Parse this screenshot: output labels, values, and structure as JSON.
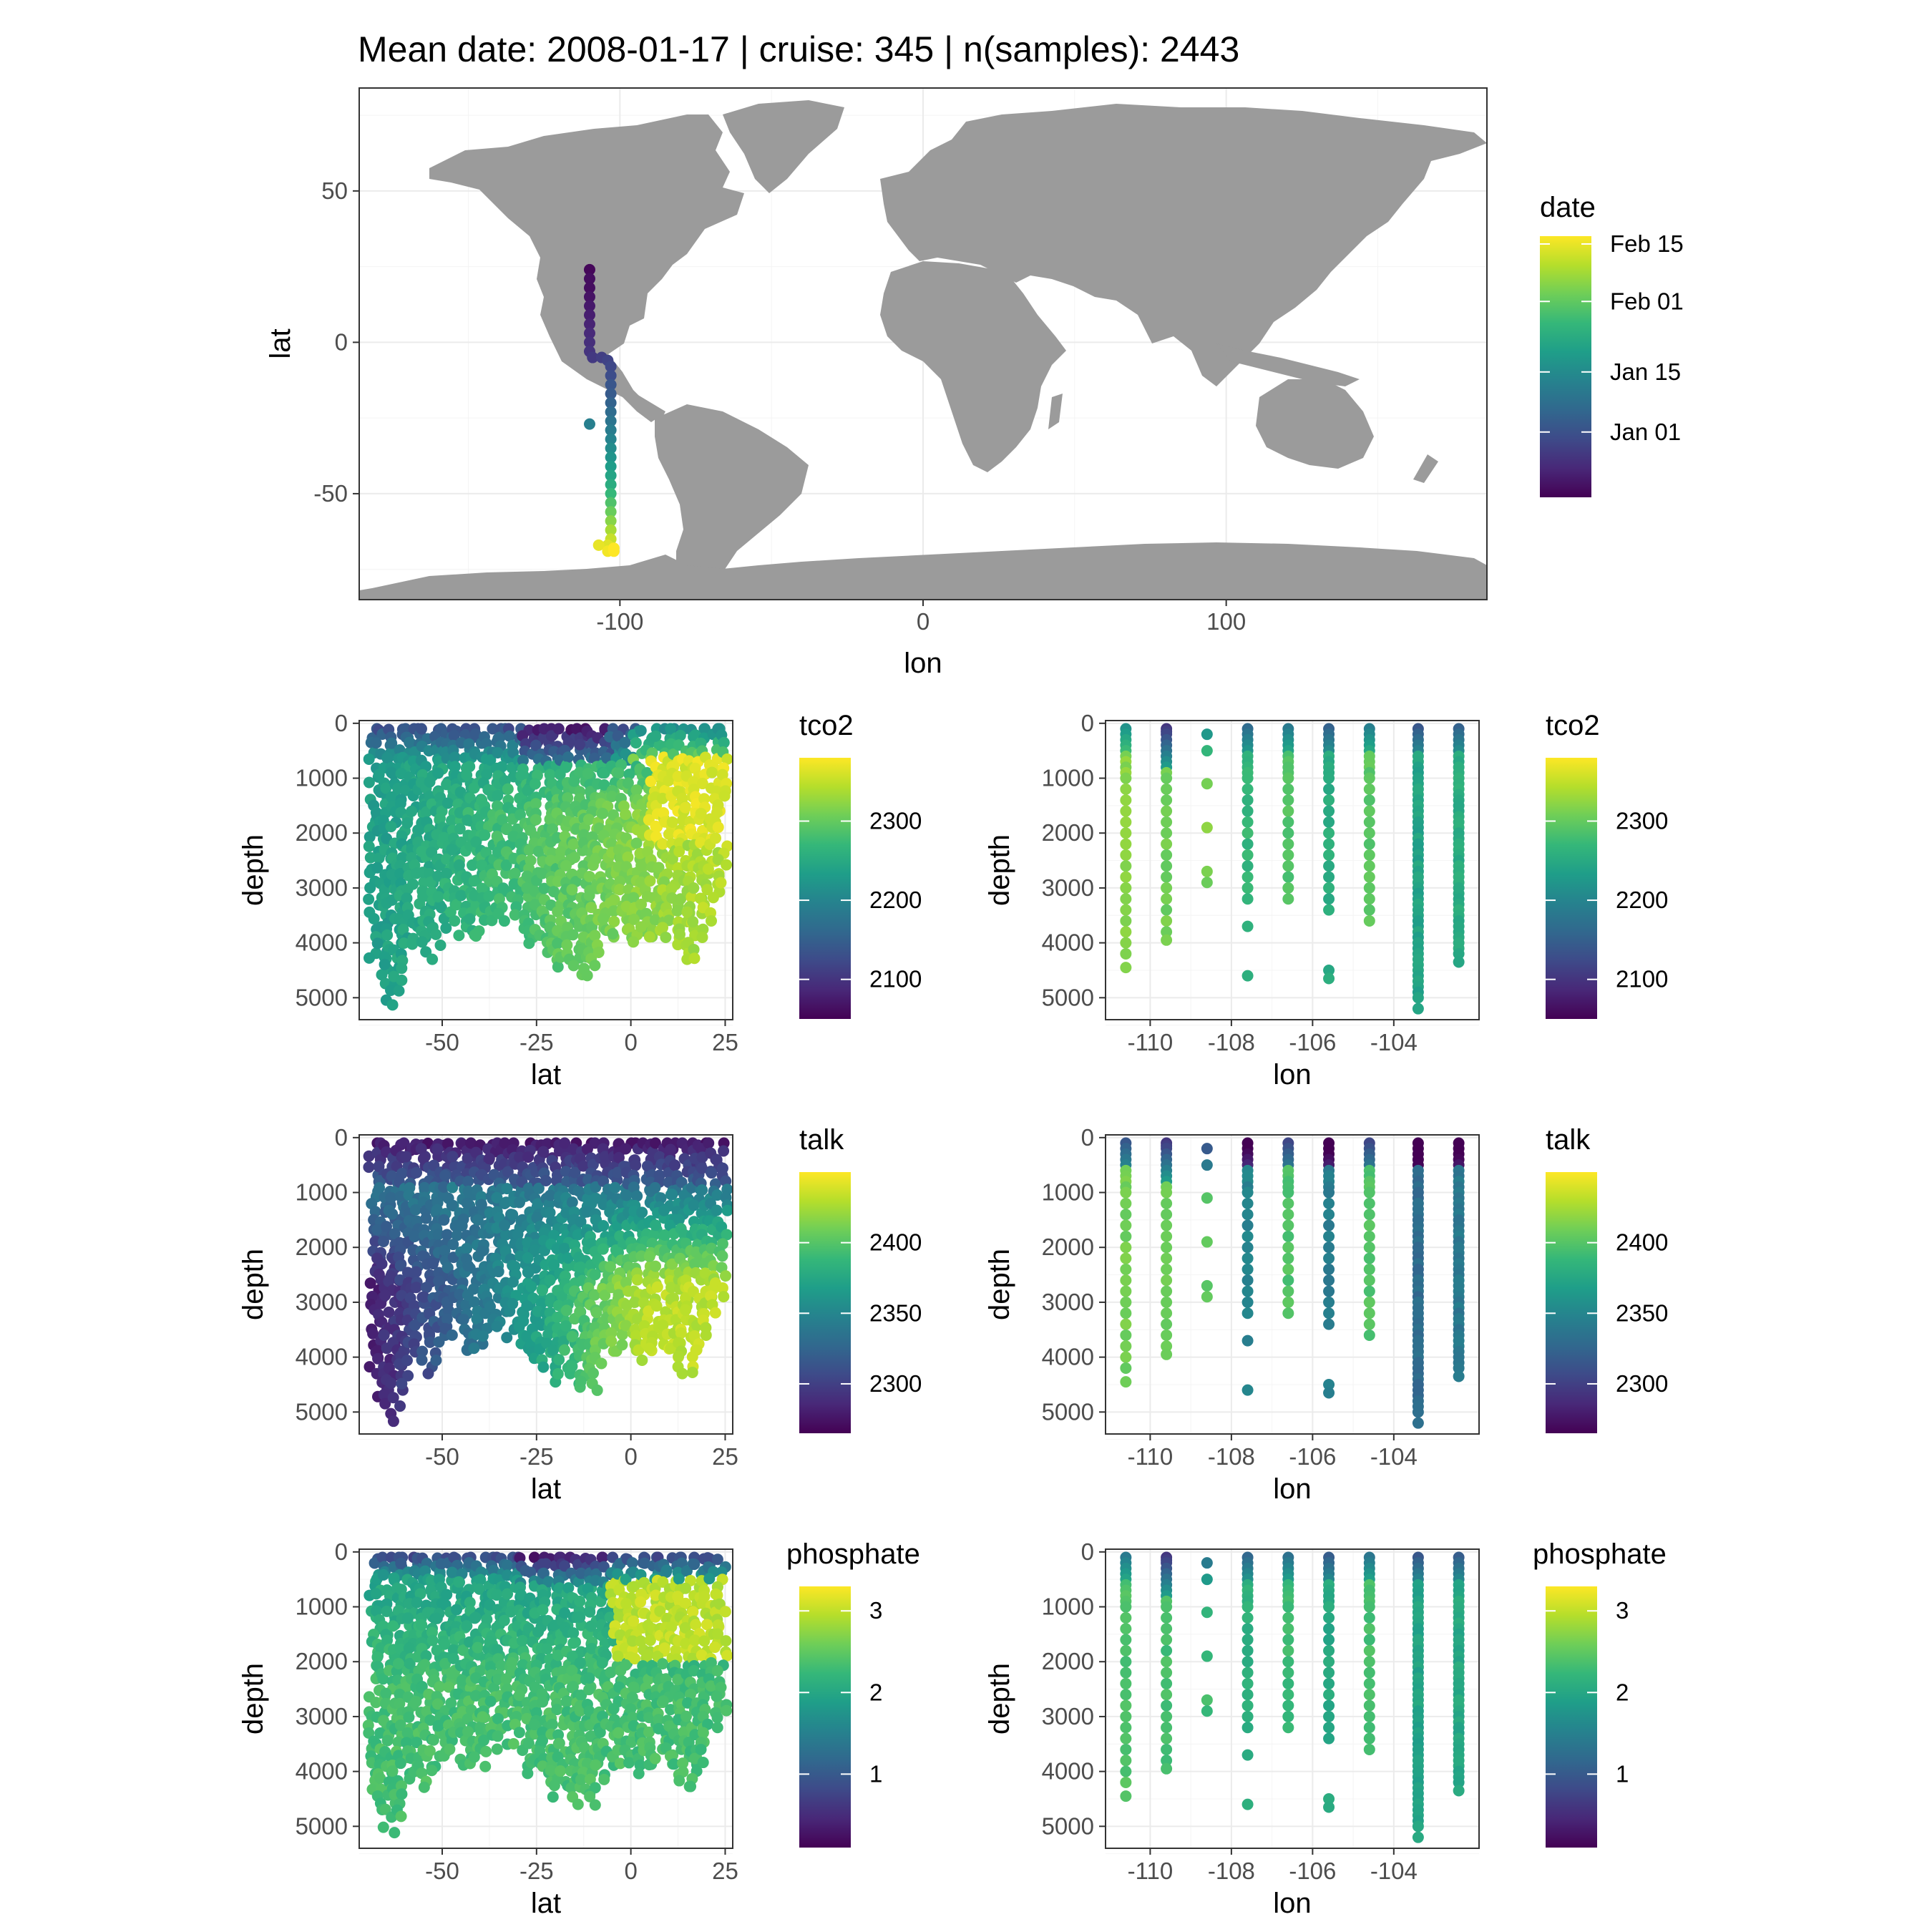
{
  "figure": {
    "title": "Mean date: 2008-01-17 | cruise: 345 | n(samples): 2443"
  },
  "colors": {
    "viridis": [
      "#440154",
      "#482878",
      "#3e4a89",
      "#31688e",
      "#26828e",
      "#1f9e89",
      "#35b779",
      "#6ece58",
      "#b5de2b",
      "#fde725"
    ],
    "land": "#9b9b9b",
    "panel_border": "#333333",
    "grid": "#ebebeb"
  },
  "chart_data": [
    {
      "id": "map",
      "type": "scatter",
      "subtype": "map",
      "xlabel": "lon",
      "ylabel": "lat",
      "xlim": [
        -186,
        186
      ],
      "ylim": [
        -85,
        84
      ],
      "xticks": [
        -100,
        0,
        100
      ],
      "xtick_labels": [
        "-100",
        "0",
        "100"
      ],
      "yticks": [
        -50,
        0,
        50
      ],
      "ytick_labels": [
        "-50",
        "0",
        "50"
      ],
      "grid": true,
      "legend": {
        "title": "date",
        "position": "right",
        "type": "colorbar",
        "ticks": [
          "Jan 01",
          "Jan 15",
          "Feb 01",
          "Feb 15"
        ],
        "tick_fraction": [
          0.25,
          0.48,
          0.75,
          0.97
        ]
      },
      "stations": [
        {
          "lon": -110,
          "lat": 24,
          "date": "2007-12-21"
        },
        {
          "lon": -110,
          "lat": 21,
          "date": "2007-12-22"
        },
        {
          "lon": -110,
          "lat": 18,
          "date": "2007-12-22"
        },
        {
          "lon": -110,
          "lat": 15,
          "date": "2007-12-23"
        },
        {
          "lon": -110,
          "lat": 12,
          "date": "2007-12-24"
        },
        {
          "lon": -110,
          "lat": 9,
          "date": "2007-12-25"
        },
        {
          "lon": -110,
          "lat": 6,
          "date": "2007-12-26"
        },
        {
          "lon": -110,
          "lat": 3,
          "date": "2007-12-27"
        },
        {
          "lon": -110,
          "lat": 0,
          "date": "2007-12-28"
        },
        {
          "lon": -110,
          "lat": -3,
          "date": "2007-12-29"
        },
        {
          "lon": -109,
          "lat": -5,
          "date": "2007-12-30"
        },
        {
          "lon": -106,
          "lat": -5,
          "date": "2007-12-31"
        },
        {
          "lon": -104,
          "lat": -6,
          "date": "2008-01-01"
        },
        {
          "lon": -103,
          "lat": -8,
          "date": "2008-01-02"
        },
        {
          "lon": -103,
          "lat": -11,
          "date": "2008-01-03"
        },
        {
          "lon": -103,
          "lat": -14,
          "date": "2008-01-05"
        },
        {
          "lon": -103,
          "lat": -17,
          "date": "2008-01-06"
        },
        {
          "lon": -103,
          "lat": -20,
          "date": "2008-01-08"
        },
        {
          "lon": -103,
          "lat": -23,
          "date": "2008-01-10"
        },
        {
          "lon": -103,
          "lat": -26,
          "date": "2008-01-12"
        },
        {
          "lon": -103,
          "lat": -29,
          "date": "2008-01-14"
        },
        {
          "lon": -110,
          "lat": -27,
          "date": "2008-01-15"
        },
        {
          "lon": -103,
          "lat": -32,
          "date": "2008-01-16"
        },
        {
          "lon": -103,
          "lat": -35,
          "date": "2008-01-18"
        },
        {
          "lon": -103,
          "lat": -38,
          "date": "2008-01-20"
        },
        {
          "lon": -103,
          "lat": -41,
          "date": "2008-01-22"
        },
        {
          "lon": -103,
          "lat": -44,
          "date": "2008-01-24"
        },
        {
          "lon": -103,
          "lat": -47,
          "date": "2008-01-26"
        },
        {
          "lon": -103,
          "lat": -50,
          "date": "2008-01-29"
        },
        {
          "lon": -103,
          "lat": -53,
          "date": "2008-02-01"
        },
        {
          "lon": -103,
          "lat": -56,
          "date": "2008-02-04"
        },
        {
          "lon": -103,
          "lat": -59,
          "date": "2008-02-07"
        },
        {
          "lon": -103,
          "lat": -62,
          "date": "2008-02-10"
        },
        {
          "lon": -103,
          "lat": -65,
          "date": "2008-02-13"
        },
        {
          "lon": -104,
          "lat": -67,
          "date": "2008-02-15"
        },
        {
          "lon": -107,
          "lat": -67,
          "date": "2008-02-16"
        },
        {
          "lon": -104,
          "lat": -69,
          "date": "2008-02-17"
        },
        {
          "lon": -102,
          "lat": -69,
          "date": "2008-02-18"
        },
        {
          "lon": -102,
          "lat": -68,
          "date": "2008-02-18"
        }
      ]
    },
    {
      "id": "tco2-lat",
      "type": "scatter",
      "xlabel": "lat",
      "ylabel": "depth",
      "xlim": [
        -72,
        27
      ],
      "ylim": [
        5400,
        -50
      ],
      "xticks": [
        -50,
        -25,
        0,
        25
      ],
      "yticks": [
        0,
        1000,
        2000,
        3000,
        4000,
        5000
      ],
      "grid": true,
      "legend": {
        "title": "tco2",
        "position": "right",
        "type": "colorbar",
        "ticks": [
          2100,
          2200,
          2300
        ],
        "range": [
          2050,
          2380
        ]
      }
    },
    {
      "id": "tco2-lon",
      "type": "scatter",
      "xlabel": "lon",
      "ylabel": "depth",
      "xlim": [
        -111.1,
        -101.9
      ],
      "ylim": [
        5400,
        -50
      ],
      "xticks": [
        -110,
        -108,
        -106,
        -104
      ],
      "yticks": [
        0,
        1000,
        2000,
        3000,
        4000,
        5000
      ],
      "grid": true,
      "legend": {
        "title": "tco2",
        "position": "right",
        "type": "colorbar",
        "ticks": [
          2100,
          2200,
          2300
        ],
        "range": [
          2050,
          2380
        ]
      }
    },
    {
      "id": "talk-lat",
      "type": "scatter",
      "xlabel": "lat",
      "ylabel": "depth",
      "xlim": [
        -72,
        27
      ],
      "ylim": [
        5400,
        -50
      ],
      "xticks": [
        -50,
        -25,
        0,
        25
      ],
      "yticks": [
        0,
        1000,
        2000,
        3000,
        4000,
        5000
      ],
      "grid": true,
      "legend": {
        "title": "talk",
        "position": "right",
        "type": "colorbar",
        "ticks": [
          2300,
          2350,
          2400
        ],
        "range": [
          2265,
          2450
        ]
      }
    },
    {
      "id": "talk-lon",
      "type": "scatter",
      "xlabel": "lon",
      "ylabel": "depth",
      "xlim": [
        -111.1,
        -101.9
      ],
      "ylim": [
        5400,
        -50
      ],
      "xticks": [
        -110,
        -108,
        -106,
        -104
      ],
      "yticks": [
        0,
        1000,
        2000,
        3000,
        4000,
        5000
      ],
      "grid": true,
      "legend": {
        "title": "talk",
        "position": "right",
        "type": "colorbar",
        "ticks": [
          2300,
          2350,
          2400
        ],
        "range": [
          2265,
          2450
        ]
      }
    },
    {
      "id": "phosphate-lat",
      "type": "scatter",
      "xlabel": "lat",
      "ylabel": "depth",
      "xlim": [
        -72,
        27
      ],
      "ylim": [
        5400,
        -50
      ],
      "xticks": [
        -50,
        -25,
        0,
        25
      ],
      "yticks": [
        0,
        1000,
        2000,
        3000,
        4000,
        5000
      ],
      "grid": true,
      "legend": {
        "title": "phosphate",
        "position": "right",
        "type": "colorbar",
        "ticks": [
          1,
          2,
          3
        ],
        "range": [
          0.1,
          3.3
        ]
      }
    },
    {
      "id": "phosphate-lon",
      "type": "scatter",
      "xlabel": "lon",
      "ylabel": "depth",
      "xlim": [
        -111.1,
        -101.9
      ],
      "ylim": [
        5400,
        -50
      ],
      "xticks": [
        -110,
        -108,
        -106,
        -104
      ],
      "yticks": [
        0,
        1000,
        2000,
        3000,
        4000,
        5000
      ],
      "grid": true,
      "legend": {
        "title": "phosphate",
        "position": "right",
        "type": "colorbar",
        "ticks": [
          1,
          2,
          3
        ],
        "range": [
          0.1,
          3.3
        ]
      }
    }
  ],
  "section_stations": {
    "lat_section": [
      -68,
      -66,
      -64,
      -62,
      -60,
      -58,
      -56,
      -54,
      -52,
      -50,
      -48,
      -46,
      -44,
      -42,
      -40,
      -38,
      -36,
      -34,
      -32,
      -30,
      -28,
      -26,
      -24,
      -22,
      -20,
      -18,
      -16,
      -14,
      -12,
      -10,
      -8,
      -6,
      -4,
      -2,
      0,
      2,
      4,
      6,
      8,
      10,
      12,
      14,
      16,
      18,
      20,
      22,
      24
    ],
    "lat_max_depth": [
      4400,
      4800,
      5200,
      4900,
      4500,
      4100,
      3900,
      4300,
      4100,
      3800,
      3600,
      3400,
      4000,
      3900,
      4000,
      3700,
      3400,
      3700,
      3200,
      3500,
      3900,
      4100,
      4000,
      4200,
      4500,
      4400,
      4300,
      4600,
      4500,
      4700,
      4200,
      3900,
      4000,
      3800,
      4000,
      4100,
      3900,
      4000,
      3800,
      3900,
      4100,
      4300,
      4400,
      3900,
      3600,
      3200,
      3000
    ],
    "lon_columns": [
      -110.6,
      -109.6,
      -108.6,
      -107.6,
      -106.6,
      -105.6,
      -104.6,
      -103.4,
      -102.4
    ],
    "lon_column_depths": [
      [
        100,
        200,
        300,
        400,
        500,
        600,
        700,
        800,
        900,
        1000,
        1200,
        1400,
        1600,
        1800,
        2000,
        2200,
        2400,
        2600,
        2800,
        3000,
        3200,
        3400,
        3600,
        3800,
        4000,
        4200,
        4450
      ],
      [
        100,
        150,
        200,
        300,
        400,
        500,
        600,
        700,
        800,
        900,
        1000,
        1200,
        1400,
        1600,
        1800,
        2000,
        2200,
        2400,
        2600,
        2800,
        3000,
        3200,
        3400,
        3600,
        3800,
        3950
      ],
      [
        200,
        500,
        1100,
        1900,
        2700,
        2900
      ],
      [
        100,
        200,
        300,
        400,
        500,
        600,
        700,
        800,
        900,
        1000,
        1200,
        1400,
        1600,
        1800,
        2000,
        2200,
        2400,
        2600,
        2800,
        3000,
        3200,
        3700,
        4600
      ],
      [
        100,
        200,
        300,
        400,
        500,
        600,
        700,
        800,
        900,
        1000,
        1200,
        1400,
        1600,
        1800,
        2000,
        2200,
        2400,
        2600,
        2800,
        3000,
        3200
      ],
      [
        100,
        200,
        300,
        400,
        500,
        600,
        700,
        800,
        900,
        1000,
        1200,
        1400,
        1600,
        1800,
        2000,
        2200,
        2400,
        2600,
        2800,
        3000,
        3200,
        3400,
        4500,
        4650
      ],
      [
        100,
        200,
        300,
        400,
        500,
        600,
        700,
        800,
        900,
        1000,
        1200,
        1400,
        1600,
        1800,
        2000,
        2200,
        2400,
        2600,
        2800,
        3000,
        3200,
        3400,
        3600
      ],
      [
        100,
        200,
        300,
        400,
        500,
        600,
        700,
        800,
        900,
        1000,
        1100,
        1200,
        1300,
        1400,
        1500,
        1600,
        1700,
        1800,
        1900,
        2000,
        2100,
        2200,
        2300,
        2400,
        2500,
        2600,
        2700,
        2800,
        2900,
        3000,
        3100,
        3200,
        3300,
        3400,
        3500,
        3600,
        3700,
        3800,
        3900,
        4000,
        4100,
        4200,
        4300,
        4400,
        4500,
        4600,
        4700,
        4800,
        4900,
        5000,
        5200
      ],
      [
        100,
        200,
        300,
        400,
        500,
        600,
        700,
        800,
        900,
        1000,
        1100,
        1200,
        1300,
        1400,
        1500,
        1600,
        1700,
        1800,
        1900,
        2000,
        2100,
        2200,
        2300,
        2400,
        2500,
        2600,
        2700,
        2800,
        2900,
        3000,
        3100,
        3200,
        3300,
        3400,
        3500,
        3600,
        3700,
        3800,
        3900,
        4000,
        4100,
        4200,
        4350
      ]
    ]
  }
}
